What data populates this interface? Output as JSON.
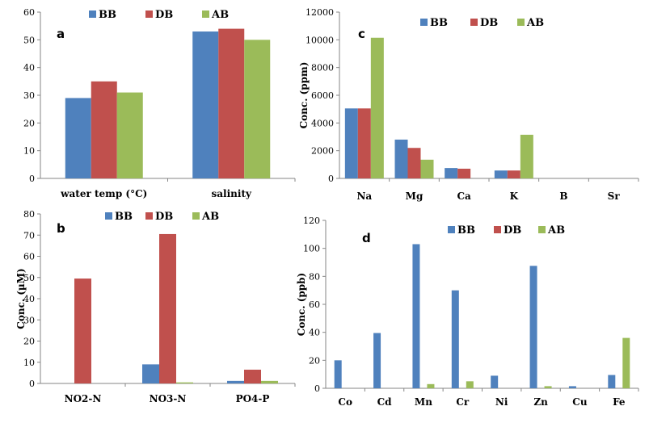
{
  "colors": {
    "BB": "#4f81bd",
    "DB": "#c0504d",
    "AB": "#9bbb59"
  },
  "chart_data": [
    {
      "panel": "a",
      "type": "bar",
      "categories": [
        "water temp (°C)",
        "salinity"
      ],
      "series": [
        {
          "name": "BB",
          "values": [
            29,
            53
          ]
        },
        {
          "name": "DB",
          "values": [
            35,
            54
          ]
        },
        {
          "name": "AB",
          "values": [
            31,
            50
          ]
        }
      ],
      "ylabel": "",
      "ylim": [
        0,
        60
      ],
      "yticks": [
        0,
        10,
        20,
        30,
        40,
        50,
        60
      ],
      "legend": "top"
    },
    {
      "panel": "b",
      "type": "bar",
      "categories": [
        "NO2-N",
        "NO3-N",
        "PO4-P"
      ],
      "series": [
        {
          "name": "BB",
          "values": [
            0,
            9,
            1.2
          ]
        },
        {
          "name": "DB",
          "values": [
            49.5,
            70.5,
            6.5
          ]
        },
        {
          "name": "AB",
          "values": [
            0,
            0.5,
            1.2
          ]
        }
      ],
      "ylabel": "Conc. (µM)",
      "ylim": [
        0,
        80
      ],
      "yticks": [
        0,
        10,
        20,
        30,
        40,
        50,
        60,
        70,
        80
      ],
      "legend": "top"
    },
    {
      "panel": "c",
      "type": "bar",
      "categories": [
        "Na",
        "Mg",
        "Ca",
        "K",
        "B",
        "Sr"
      ],
      "series": [
        {
          "name": "BB",
          "values": [
            5050,
            2800,
            750,
            570,
            0,
            0
          ]
        },
        {
          "name": "DB",
          "values": [
            5050,
            2200,
            700,
            570,
            0,
            0
          ]
        },
        {
          "name": "AB",
          "values": [
            10150,
            1350,
            0,
            3150,
            0,
            0
          ]
        }
      ],
      "ylabel": "Conc. (ppm)",
      "ylim": [
        0,
        12000
      ],
      "yticks": [
        0,
        2000,
        4000,
        6000,
        8000,
        10000,
        12000
      ],
      "legend": "top-right"
    },
    {
      "panel": "d",
      "type": "bar",
      "categories": [
        "Co",
        "Cd",
        "Mn",
        "Cr",
        "Ni",
        "Zn",
        "Cu",
        "Fe"
      ],
      "series": [
        {
          "name": "BB",
          "values": [
            20,
            39.5,
            103,
            70,
            9,
            87.5,
            1.5,
            9.5
          ]
        },
        {
          "name": "DB",
          "values": [
            0,
            0,
            0,
            0,
            0,
            0,
            0,
            0
          ]
        },
        {
          "name": "AB",
          "values": [
            0,
            0,
            3,
            5,
            0,
            1.5,
            0,
            36
          ]
        }
      ],
      "ylabel": "Conc. (ppb)",
      "ylim": [
        0,
        120
      ],
      "yticks": [
        0,
        20,
        40,
        60,
        80,
        100,
        120
      ],
      "legend": "top"
    }
  ]
}
